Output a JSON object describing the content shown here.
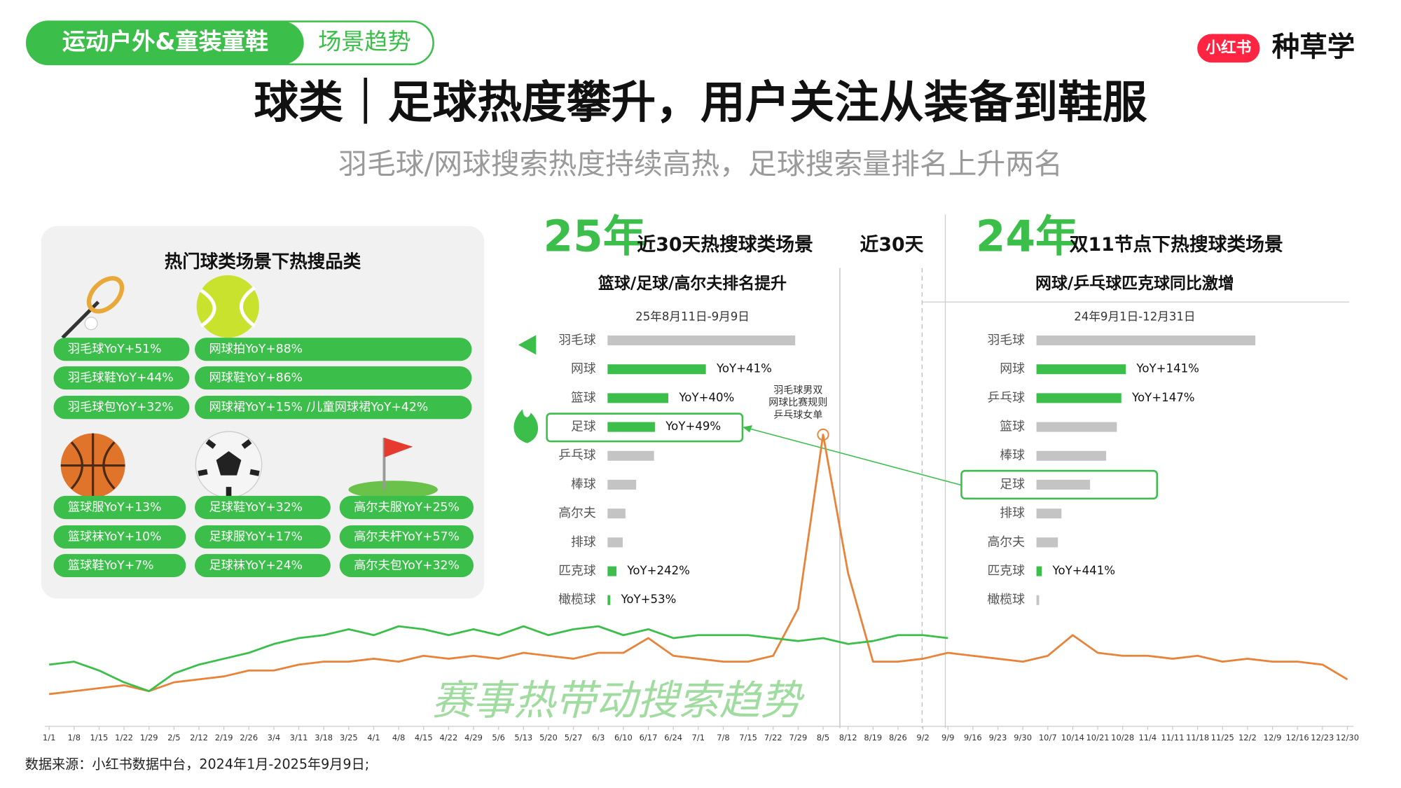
{
  "header": {
    "tag": "运动户外&童装童鞋",
    "section": "场景趋势",
    "brand_logo": "小红书",
    "brand": "种草学"
  },
  "title": "球类｜足球热度攀升，用户关注从装备到鞋服",
  "subtitle": "羽毛球/网球搜索热度持续高热，足球搜索量排名上升两名",
  "left_panel": {
    "title": "热门球类场景下热搜品类",
    "groups": [
      {
        "items": [
          "羽毛球YoY+51%",
          "羽毛球鞋YoY+44%",
          "羽毛球包YoY+32%"
        ]
      },
      {
        "items": [
          "网球拍YoY+88%",
          "网球鞋YoY+86%",
          "网球裙YoY+15% /儿童网球裙YoY+42%"
        ]
      },
      {
        "items": [
          "篮球服YoY+13%",
          "篮球袜YoY+10%",
          "篮球鞋YoY+7%"
        ]
      },
      {
        "items": [
          "足球鞋YoY+32%",
          "足球服YoY+17%",
          "足球袜YoY+24%"
        ]
      },
      {
        "items": [
          "高尔夫服YoY+25%",
          "高尔夫杆YoY+57%",
          "高尔夫包YoY+32%"
        ]
      }
    ]
  },
  "period_label": "近30天",
  "footer": "数据来源：小红书数据中台，2024年1月-2025年9月9日;",
  "chart_data": [
    {
      "type": "bar",
      "year": "25年",
      "title": "近30天热搜球类场景",
      "subtitle": "篮球/足球/高尔夫排名提升",
      "date_range": "25年8月11日-9月9日",
      "categories": [
        "羽毛球",
        "网球",
        "篮球",
        "足球",
        "乒乓球",
        "棒球",
        "高尔夫",
        "排球",
        "匹克球",
        "橄榄球"
      ],
      "values": [
        210,
        110,
        68,
        53,
        52,
        32,
        20,
        17,
        10,
        3
      ],
      "colors": [
        "#c4c4c4",
        "#3cbf4a",
        "#3cbf4a",
        "#3cbf4a",
        "#c4c4c4",
        "#c4c4c4",
        "#c4c4c4",
        "#c4c4c4",
        "#3cbf4a",
        "#3cbf4a"
      ],
      "yoy_labels": [
        null,
        "YoY+41%",
        "YoY+40%",
        "YoY+49%",
        null,
        null,
        null,
        null,
        "YoY+242%",
        "YoY+53%"
      ],
      "xlim": [
        0,
        250
      ]
    },
    {
      "type": "bar",
      "year": "24年",
      "title": "双11节点下热搜球类场景",
      "subtitle": "网球/乒乓球匹克球同比激增",
      "date_range": "24年9月1日-12月31日",
      "categories": [
        "羽毛球",
        "网球",
        "乒乓球",
        "篮球",
        "棒球",
        "足球",
        "排球",
        "高尔夫",
        "匹克球",
        "橄榄球"
      ],
      "values": [
        245,
        100,
        95,
        90,
        78,
        60,
        28,
        24,
        6,
        3
      ],
      "colors": [
        "#c4c4c4",
        "#3cbf4a",
        "#3cbf4a",
        "#c4c4c4",
        "#c4c4c4",
        "#c4c4c4",
        "#c4c4c4",
        "#c4c4c4",
        "#3cbf4a",
        "#c4c4c4"
      ],
      "yoy_labels": [
        null,
        "YoY+141%",
        "YoY+147%",
        null,
        null,
        null,
        null,
        null,
        "YoY+441%",
        null
      ],
      "xlim": [
        0,
        250
      ]
    },
    {
      "type": "line",
      "overlay": "赛事热带动搜索趋势",
      "annotation": [
        "羽毛球男双",
        "网球比赛规则",
        "乒乓球女单"
      ],
      "categories": [
        "1/1",
        "1/8",
        "1/15",
        "1/22",
        "1/29",
        "2/5",
        "2/12",
        "2/19",
        "2/26",
        "3/4",
        "3/11",
        "3/18",
        "3/25",
        "4/1",
        "4/8",
        "4/15",
        "4/22",
        "4/29",
        "5/6",
        "5/13",
        "5/20",
        "5/27",
        "6/3",
        "6/10",
        "6/17",
        "6/24",
        "7/1",
        "7/8",
        "7/15",
        "7/22",
        "7/29",
        "8/5",
        "8/12",
        "8/19",
        "8/26",
        "9/2",
        "9/9",
        "9/16",
        "9/23",
        "9/30",
        "10/7",
        "10/14",
        "10/21",
        "10/28",
        "11/4",
        "11/11",
        "11/18",
        "11/25",
        "12/2",
        "12/9",
        "12/16",
        "12/23",
        "12/30"
      ],
      "series": [
        {
          "color": "#e8843a",
          "values": [
            7,
            8,
            9,
            10,
            8,
            11,
            12,
            13,
            15,
            15,
            17,
            18,
            18,
            19,
            18,
            20,
            19,
            20,
            19,
            21,
            20,
            19,
            21,
            21,
            26,
            20,
            19,
            18,
            18,
            20,
            36,
            95,
            48,
            18,
            18,
            19,
            21,
            20,
            19,
            18,
            20,
            27,
            21,
            20,
            20,
            19,
            20,
            18,
            19,
            18,
            18,
            17,
            12
          ]
        },
        {
          "color": "#3cbf4a",
          "values": [
            17,
            18,
            15,
            11,
            8,
            14,
            17,
            19,
            21,
            24,
            26,
            27,
            29,
            27,
            30,
            29,
            27,
            29,
            27,
            30,
            27,
            29,
            30,
            27,
            29,
            26,
            27,
            27,
            27,
            26,
            25,
            26,
            24,
            25,
            27,
            27,
            26,
            null,
            null,
            null,
            null,
            null,
            null,
            null,
            null,
            null,
            null,
            null,
            null,
            null,
            null,
            null,
            null
          ]
        }
      ],
      "ylim": [
        0,
        100
      ]
    }
  ]
}
